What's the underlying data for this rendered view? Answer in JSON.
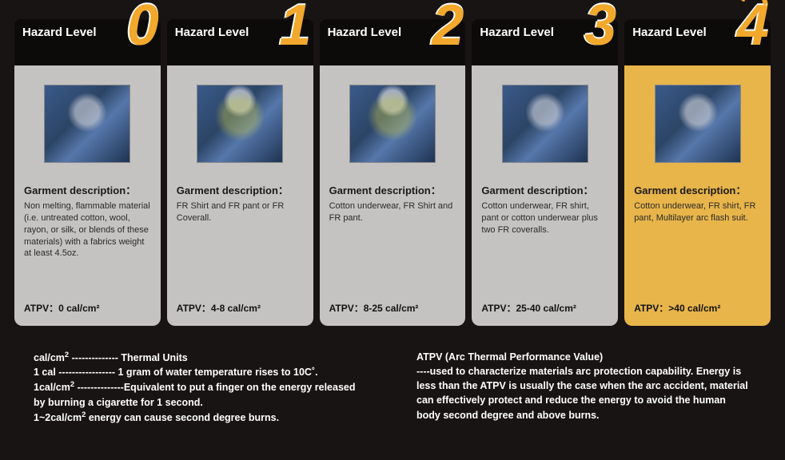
{
  "hazard_label": "Hazard Level",
  "gd_label": "Garment description：",
  "cards": [
    {
      "num": "0",
      "desc": "Non melting, flammable material (i.e. untreated cotton, wool, rayon, or silk, or blends of these materials) with a fabrics weight at least 4.5oz.",
      "atpv": "ATPV：0 cal/cm²",
      "bg": "normal",
      "img_class": ""
    },
    {
      "num": "1",
      "desc": "FR Shirt and FR pant or FR Coverall.",
      "atpv": "ATPV：4-8 cal/cm²",
      "bg": "normal",
      "img_class": "face-shield"
    },
    {
      "num": "2",
      "desc": "Cotton underwear, FR Shirt and FR pant.",
      "atpv": "ATPV：8-25 cal/cm²",
      "bg": "normal",
      "img_class": "face-shield"
    },
    {
      "num": "3",
      "desc": "Cotton underwear, FR shirt, pant or cotton underwear plus two FR coveralls.",
      "atpv": "ATPV：25-40 cal/cm²",
      "bg": "normal",
      "img_class": ""
    },
    {
      "num": "4",
      "desc": "Cotton underwear, FR shirt, FR pant, Multilayer arc flash suit.",
      "atpv": "ATPV：>40 cal/cm²",
      "bg": "highlight",
      "img_class": ""
    }
  ],
  "footer_left": "cal/cm² -------------- Thermal Units\n1 cal ----------------- 1 gram of water temperature rises to 10C˚.\n1cal/cm² --------------Equivalent to put a finger on the energy released by burning a cigarette for 1 second.\n1~2cal/cm²  energy can cause second degree burns.",
  "footer_right": "ATPV (Arc Thermal Performance Value)\n----used to characterize materials arc protection capability. Energy is less than the ATPV is usually the case when the arc accident, material can effectively protect and reduce the energy to avoid the human body second degree and above burns.",
  "colors": {
    "page_bg": "#191414",
    "header_bg": "#0d0b0a",
    "number_color": "#f2a82c",
    "card_normal_bg": "#c4c3c1",
    "card_highlight_bg": "#e8b54a",
    "text_white": "#ffffff"
  }
}
